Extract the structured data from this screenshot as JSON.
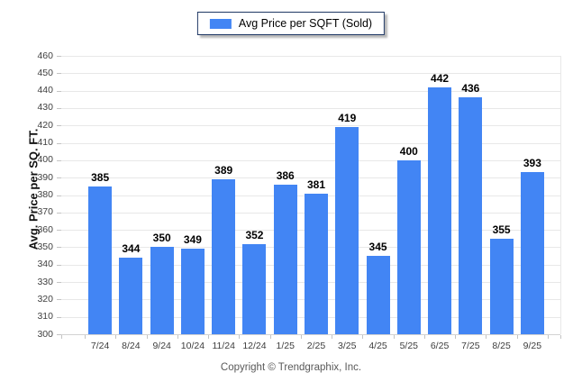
{
  "legend": {
    "label": "Avg Price per SQFT (Sold)"
  },
  "footer": {
    "copyright": "Copyright © Trendgraphix, Inc."
  },
  "colors": {
    "bar": "#4285F4",
    "grid": "#E8E8E8",
    "axis_line": "#D2D2D2",
    "tick_mark": "#C4C4C4",
    "tick_label": "#3D3D3D",
    "value_label": "#000000",
    "legend_border": "#1F3864",
    "footer_text": "#595959"
  },
  "chart_data": {
    "type": "bar",
    "title": "",
    "legend": "Avg Price per SQFT (Sold)",
    "legend_position": "top-center",
    "xlabel": "",
    "ylabel": "Avg. Price per SQ. FT.",
    "categories": [
      "7/24",
      "8/24",
      "9/24",
      "10/24",
      "11/24",
      "12/24",
      "1/25",
      "2/25",
      "3/25",
      "4/25",
      "5/25",
      "6/25",
      "7/25",
      "8/25",
      "9/25"
    ],
    "values": [
      385,
      344,
      350,
      349,
      389,
      352,
      386,
      381,
      419,
      345,
      400,
      442,
      436,
      355,
      393
    ],
    "ylim": [
      300,
      460
    ],
    "ytick_step": 10,
    "yticks": [
      300,
      310,
      320,
      330,
      340,
      350,
      360,
      370,
      380,
      390,
      400,
      410,
      420,
      430,
      440,
      450,
      460
    ],
    "grid": true,
    "bar_color": "#4285F4"
  }
}
